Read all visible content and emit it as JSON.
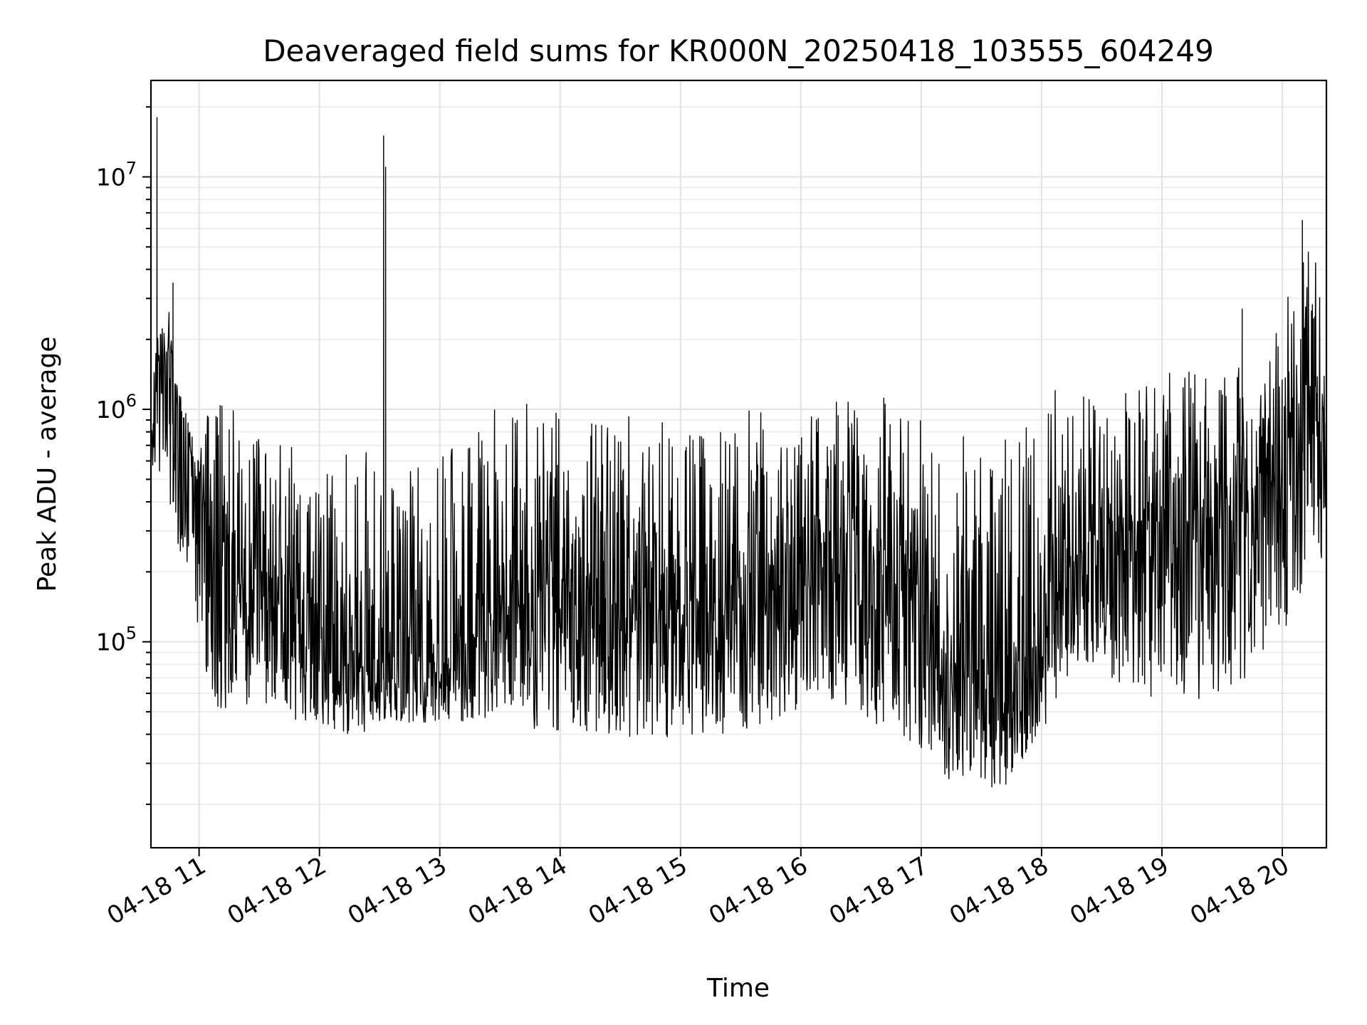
{
  "chart_data": {
    "type": "line",
    "title": "Deaveraged field sums for KR000N_20250418_103555_604249",
    "xlabel": "Time",
    "ylabel": "Peak ADU - average",
    "yscale": "log",
    "xlim": [
      "04-18 10:36",
      "04-18 20:22"
    ],
    "ylim": [
      13000,
      26000000
    ],
    "grid": "on (major and minor)",
    "x_tick_labels": [
      "04-18 11",
      "04-18 12",
      "04-18 13",
      "04-18 14",
      "04-18 15",
      "04-18 16",
      "04-18 17",
      "04-18 18",
      "04-18 19",
      "04-18 20"
    ],
    "y_ticks": [
      {
        "base": "10",
        "exp": "5",
        "value": 100000
      },
      {
        "base": "10",
        "exp": "6",
        "value": 1000000
      },
      {
        "base": "10",
        "exp": "7",
        "value": 10000000
      }
    ],
    "series": [
      {
        "color": "#000000",
        "x": [
          "04-18 10:36",
          "04-18 10:40",
          "04-18 10:45",
          "04-18 10:50",
          "04-18 10:55",
          "04-18 11:00",
          "04-18 11:05",
          "04-18 11:10",
          "04-18 11:15",
          "04-18 11:20",
          "04-18 11:30",
          "04-18 11:40",
          "04-18 11:50",
          "04-18 12:00",
          "04-18 12:10",
          "04-18 12:20",
          "04-18 12:30",
          "04-18 12:40",
          "04-18 12:50",
          "04-18 13:00",
          "04-18 13:10",
          "04-18 13:20",
          "04-18 13:30",
          "04-18 13:45",
          "04-18 14:00",
          "04-18 14:15",
          "04-18 14:30",
          "04-18 14:45",
          "04-18 15:00",
          "04-18 15:15",
          "04-18 15:30",
          "04-18 15:45",
          "04-18 16:00",
          "04-18 16:15",
          "04-18 16:30",
          "04-18 16:45",
          "04-18 17:00",
          "04-18 17:15",
          "04-18 17:30",
          "04-18 17:45",
          "04-18 18:00",
          "04-18 18:10",
          "04-18 18:20",
          "04-18 18:30",
          "04-18 18:45",
          "04-18 19:00",
          "04-18 19:15",
          "04-18 19:30",
          "04-18 19:45",
          "04-18 20:00",
          "04-18 20:08",
          "04-18 20:15",
          "04-18 20:22"
        ],
        "y": [
          600000,
          1500000,
          1800000,
          1100000,
          700000,
          450000,
          350000,
          250000,
          180000,
          150000,
          140000,
          150000,
          130000,
          110000,
          90000,
          80000,
          70000,
          65000,
          70000,
          75000,
          85000,
          110000,
          150000,
          160000,
          170000,
          160000,
          150000,
          140000,
          130000,
          125000,
          140000,
          160000,
          170000,
          190000,
          200000,
          190000,
          160000,
          80000,
          70000,
          75000,
          110000,
          180000,
          250000,
          280000,
          300000,
          320000,
          330000,
          350000,
          370000,
          430000,
          1000000,
          900000,
          800000
        ],
        "low_envelope": [
          450000,
          500000,
          400000,
          250000,
          150000,
          100000,
          60000,
          50000,
          50000,
          50000,
          55000,
          50000,
          45000,
          45000,
          40000,
          40000,
          45000,
          45000,
          45000,
          45000,
          45000,
          45000,
          45000,
          40000,
          40000,
          40000,
          38000,
          38000,
          38000,
          35000,
          40000,
          45000,
          50000,
          55000,
          50000,
          35000,
          35000,
          25000,
          22000,
          25000,
          40000,
          65000,
          85000,
          75000,
          60000,
          55000,
          55000,
          60000,
          65000,
          100000,
          130000,
          300000,
          180000
        ],
        "high_envelope": [
          1800000,
          2200000,
          3000000,
          1200000,
          900000,
          700000,
          1000000,
          1300000,
          1100000,
          900000,
          800000,
          800000,
          700000,
          700000,
          650000,
          700000,
          650000,
          600000,
          600000,
          650000,
          800000,
          1000000,
          1100000,
          1100000,
          1000000,
          1000000,
          1000000,
          1000000,
          950000,
          900000,
          1000000,
          1000000,
          1000000,
          1100000,
          1200000,
          1100000,
          900000,
          800000,
          800000,
          800000,
          1200000,
          1300000,
          1300000,
          1300000,
          1400000,
          1500000,
          1500000,
          1500000,
          1600000,
          2500000,
          4500000,
          5000000,
          3000000
        ]
      }
    ],
    "spikes": [
      {
        "x": "04-18 10:39",
        "y": 18000000
      },
      {
        "x": "04-18 12:32",
        "y": 15000000
      },
      {
        "x": "04-18 12:33",
        "y": 11000000
      },
      {
        "x": "04-18 20:10",
        "y": 6500000
      },
      {
        "x": "04-18 19:40",
        "y": 2700000
      },
      {
        "x": "04-18 10:47",
        "y": 3500000
      }
    ]
  }
}
